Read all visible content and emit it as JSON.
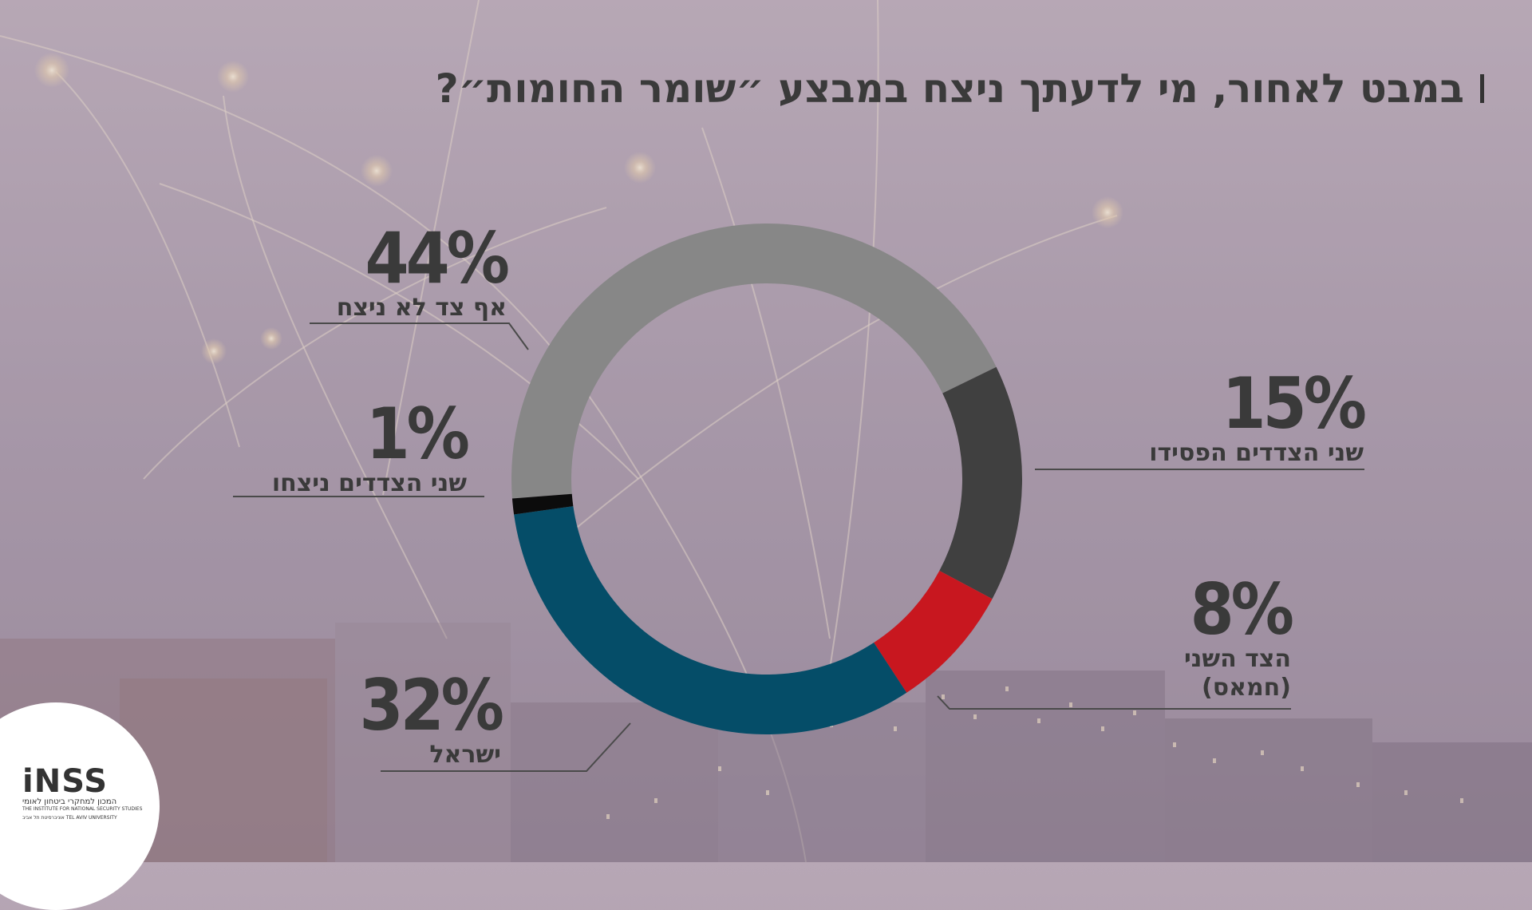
{
  "title": "במבט לאחור, מי לדעתך ניצח במבצע ״שומר החומות״?",
  "colors": {
    "background": "#a898a9",
    "nobody": "#878787",
    "both_lost": "#404040",
    "other_side": "#c8171f",
    "israel": "#054d68",
    "both_won": "#0c0c0c",
    "text": "#3a3a3a"
  },
  "chart_data": {
    "type": "pie",
    "style": "donut",
    "title": "במבט לאחור, מי לדעתך ניצח במבצע ״שומר החומות״?",
    "unit": "%",
    "slices": [
      {
        "label": "אף צד לא ניצח",
        "value": 44,
        "color": "#878787"
      },
      {
        "label": "שני הצדדים הפסידו",
        "value": 15,
        "color": "#404040"
      },
      {
        "label": "הצד השני (חמאס)",
        "value": 8,
        "color": "#c8171f"
      },
      {
        "label": "ישראל",
        "value": 32,
        "color": "#054d68"
      },
      {
        "label": "שני הצדדים ניצחו",
        "value": 1,
        "color": "#0c0c0c"
      }
    ]
  },
  "callouts": {
    "nobody": {
      "pct": "44%",
      "label": "אף צד לא ניצח"
    },
    "both_lost": {
      "pct": "15%",
      "label": "שני הצדדים הפסידו"
    },
    "other_side": {
      "pct": "8%",
      "label_1": "הצד השני",
      "label_2": "(חמאס)"
    },
    "israel": {
      "pct": "32%",
      "label": "ישראל"
    },
    "both_won": {
      "pct": "1%",
      "label": "שני הצדדים ניצחו"
    }
  },
  "logo": {
    "name": "iNSS",
    "hebrew": "המכון למחקרי ביטחון לאומי",
    "english": "THE INSTITUTE FOR NATIONAL SECURITY STUDIES",
    "university": "אוניברסיטת תל אביב TEL AVIV UNIVERSITY"
  }
}
